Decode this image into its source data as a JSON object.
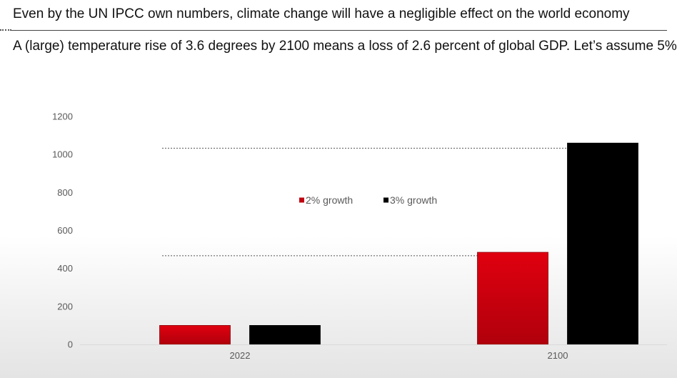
{
  "header": {
    "title": "Even by the UN IPCC own numbers, climate change will have a negligible effect on the world economy",
    "subtitle": "A (large) temperature rise of 3.6 degrees by 2100 means a loss of 2.6 percent of global GDP. Let’s assume 5%"
  },
  "chart_data": {
    "type": "bar",
    "categories": [
      "2022",
      "2100"
    ],
    "series": [
      {
        "name": "2% growth",
        "values": [
          100,
          485
        ],
        "color": "#c00010"
      },
      {
        "name": "3% growth",
        "values": [
          100,
          1060
        ],
        "color": "#000000"
      }
    ],
    "yticks": [
      0,
      200,
      400,
      600,
      800,
      1000,
      1200
    ],
    "ylim": [
      0,
      1200
    ],
    "reference_lines": [
      1033,
      467
    ],
    "legend_position": "top-center",
    "grid": false,
    "title": "",
    "xlabel": "",
    "ylabel": ""
  }
}
